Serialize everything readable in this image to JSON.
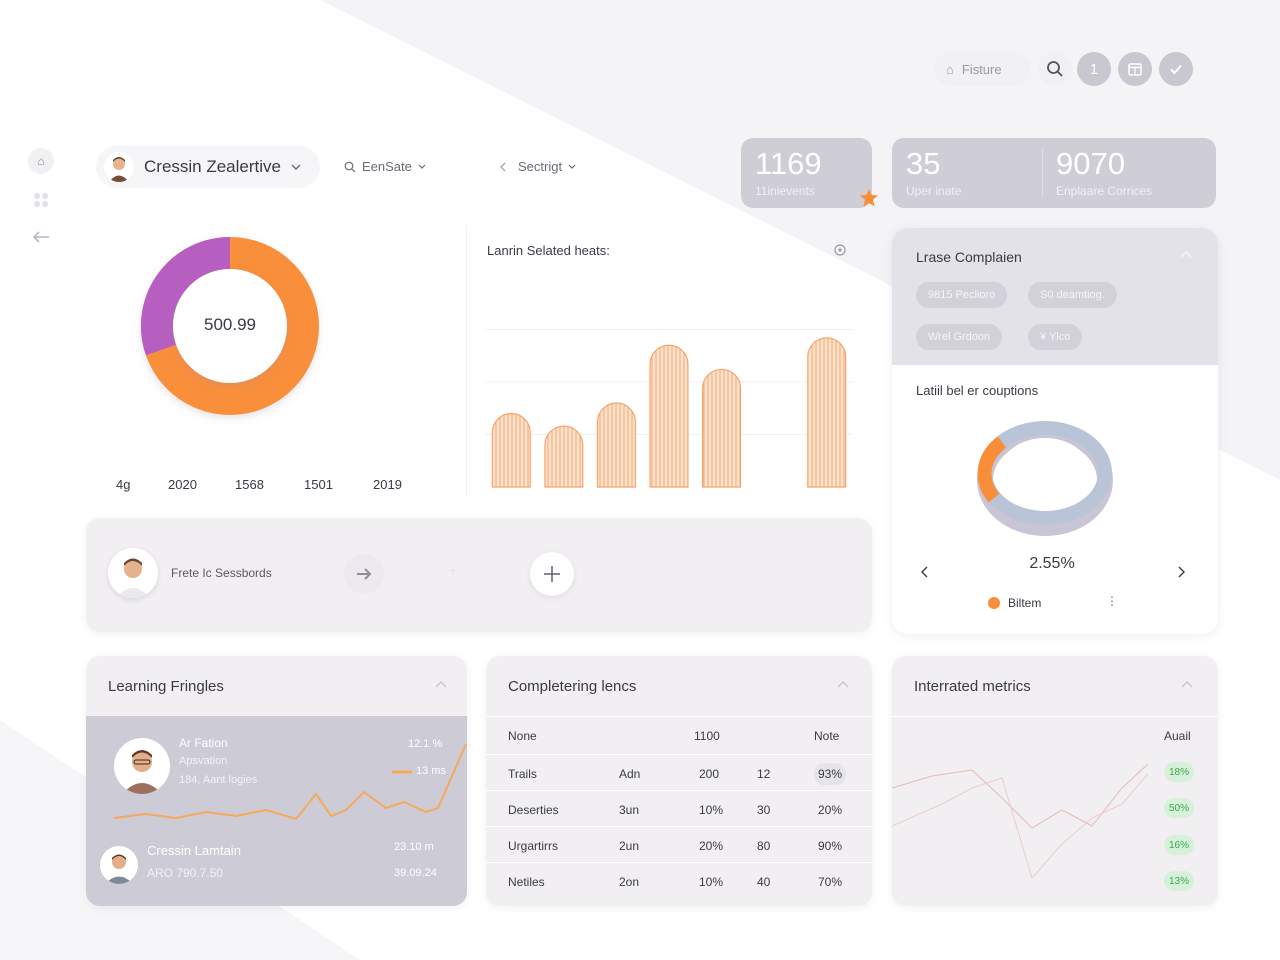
{
  "toolbar": {
    "feature_label": "Fisture",
    "notification_count": "1",
    "icons": [
      "home-icon",
      "search-icon",
      "calendar-icon",
      "check-icon"
    ]
  },
  "header": {
    "user_name": "Cressin Zealertive",
    "select_1": "EenSate",
    "select_2": "Sectrigt"
  },
  "stats": [
    {
      "value": "1169",
      "label": "11inievents"
    },
    {
      "value": "35",
      "label": "Uper inate"
    },
    {
      "value": "9070",
      "label": "Enplaare Corrices"
    }
  ],
  "donut": {
    "center_value": "500.99",
    "x_labels": [
      "4g",
      "2020",
      "1568",
      "1501",
      "2019"
    ],
    "colors": {
      "orange": "#f98e3a",
      "purple": "#b65fc0"
    }
  },
  "bar_chart": {
    "title": "Lanrin Selated heats:"
  },
  "chart_data": {
    "type": "bar",
    "title": "Lanrin Selated heats:",
    "categories": [
      "",
      "",
      "",
      "",
      "",
      "",
      ""
    ],
    "values": [
      70,
      58,
      80,
      135,
      112,
      0,
      142
    ],
    "ylim": [
      0,
      200
    ],
    "grid": true
  },
  "right_panel": {
    "title": "Lrase Complaien",
    "chips": [
      "9815 Peclioro",
      "S0 deamtiog.",
      "Wrel Grdoon",
      "¥ Ylco"
    ],
    "subtitle": "Latiil bel er couptions",
    "ring_value": "2.55%",
    "legend_label": "Biltem"
  },
  "band": {
    "label": "Frete Ic Sessbords"
  },
  "learning_card": {
    "title": "Learning Fringles",
    "person_1": {
      "name": "Ar Fation",
      "role": "Apsvation",
      "meta": "184, Aant logies",
      "value_1": "12.1 %",
      "value_2": "13 ms"
    },
    "person_2": {
      "name": "Cressin Lamtain",
      "meta": "ARO 790.7.50",
      "value_1": "23.10 m",
      "value_2": "39.09.24"
    }
  },
  "completing_card": {
    "title": "Completering lencs",
    "header": [
      "None",
      "1100",
      "Note"
    ],
    "rows": [
      {
        "name": "Trails",
        "c1": "Adn",
        "c2": "200",
        "c3": "12",
        "c4": "93%"
      },
      {
        "name": "Deserties",
        "c1": "3un",
        "c2": "10%",
        "c3": "30",
        "c4": "20%"
      },
      {
        "name": "Urgartirrs",
        "c1": "2un",
        "c2": "20%",
        "c3": "80",
        "c4": "90%"
      },
      {
        "name": "Netiles",
        "c1": "2on",
        "c2": "10%",
        "c3": "40",
        "c4": "70%"
      }
    ]
  },
  "metrics_card": {
    "title": "Interrated metrics",
    "column": "Auail",
    "values": [
      "18%",
      "50%",
      "16%",
      "13%"
    ]
  }
}
